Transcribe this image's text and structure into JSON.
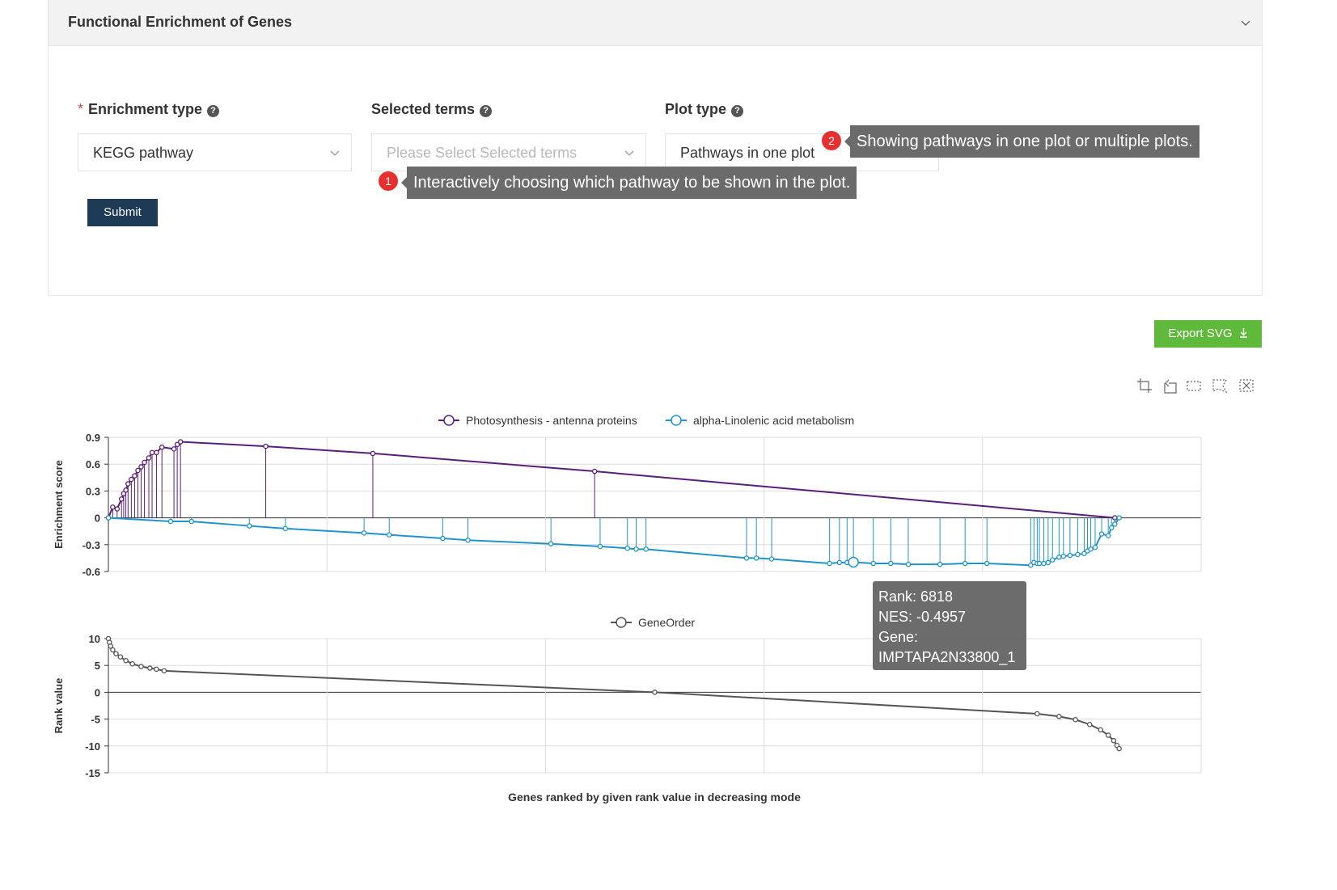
{
  "panel": {
    "title": "Functional Enrichment of Genes",
    "required_mark": "*",
    "help_glyph": "?",
    "fields": {
      "enrichment_type": {
        "label": "Enrichment type",
        "value": "KEGG pathway"
      },
      "selected_terms": {
        "label": "Selected terms",
        "placeholder": "Please Select Selected terms"
      },
      "plot_type": {
        "label": "Plot type",
        "value": "Pathways in one plot"
      }
    },
    "submit_label": "Submit"
  },
  "annotations": [
    {
      "number": "1",
      "text": "Interactively choosing which pathway to be shown in the plot."
    },
    {
      "number": "2",
      "text": "Showing pathways in one plot or multiple plots."
    }
  ],
  "export_label": "Export SVG",
  "toolbox_icons": [
    "zoom-icon",
    "zoom-reset-icon",
    "rect-select-icon",
    "lasso-select-icon",
    "clear-select-icon"
  ],
  "tooltip": {
    "lines": [
      "Rank: 6818",
      "NES: -0.4957",
      "Gene:",
      "IMPTAPA2N33800_1"
    ]
  },
  "colors": {
    "series1": "#5b1d7a",
    "series2": "#1f94cc",
    "gene_order": "#555555",
    "submit": "#1d3a57",
    "export": "#5fba3b",
    "badge": "#e5302f"
  },
  "chart_data": [
    {
      "type": "line",
      "ylabel": "Enrichment score",
      "ylim": [
        -0.6,
        0.9
      ],
      "yticks": [
        "0.9",
        "0.6",
        "0.3",
        "0",
        "-0.3",
        "-0.6"
      ],
      "xlim": [
        0,
        10000
      ],
      "grid": true,
      "legend_position": "top",
      "series": [
        {
          "name": "Photosynthesis - antenna proteins",
          "color": "#5b1d7a",
          "x": [
            0,
            40,
            80,
            120,
            140,
            160,
            180,
            210,
            240,
            270,
            300,
            330,
            370,
            400,
            440,
            490,
            600,
            630,
            660,
            1440,
            2420,
            4450,
            9210
          ],
          "y": [
            0,
            0.12,
            0.1,
            0.21,
            0.27,
            0.31,
            0.38,
            0.43,
            0.47,
            0.53,
            0.57,
            0.62,
            0.67,
            0.73,
            0.73,
            0.79,
            0.77,
            0.82,
            0.85,
            0.8,
            0.72,
            0.52,
            0.0
          ]
        },
        {
          "name": "alpha-Linolenic acid metabolism",
          "color": "#1f94cc",
          "x": [
            0,
            570,
            760,
            1290,
            1620,
            2340,
            2570,
            3060,
            3290,
            4050,
            4500,
            4750,
            4830,
            4920,
            5840,
            5930,
            6070,
            6600,
            6690,
            6760,
            6818,
            7000,
            7160,
            7320,
            7610,
            7840,
            8040,
            8440,
            8470,
            8500,
            8520,
            8560,
            8600,
            8640,
            8700,
            8740,
            8800,
            8870,
            8930,
            8960,
            8990,
            9030,
            9090,
            9150,
            9180,
            9210,
            9250
          ],
          "y": [
            0,
            -0.04,
            -0.04,
            -0.09,
            -0.12,
            -0.17,
            -0.19,
            -0.23,
            -0.25,
            -0.29,
            -0.32,
            -0.34,
            -0.35,
            -0.35,
            -0.45,
            -0.45,
            -0.46,
            -0.51,
            -0.5,
            -0.5,
            -0.4957,
            -0.51,
            -0.51,
            -0.52,
            -0.52,
            -0.51,
            -0.51,
            -0.53,
            -0.5,
            -0.51,
            -0.51,
            -0.51,
            -0.5,
            -0.47,
            -0.44,
            -0.43,
            -0.42,
            -0.41,
            -0.4,
            -0.37,
            -0.35,
            -0.33,
            -0.18,
            -0.2,
            -0.11,
            -0.07,
            0.0
          ]
        }
      ]
    },
    {
      "type": "line",
      "legend": [
        "GeneOrder"
      ],
      "ylabel": "Rank value",
      "xlabel": "Genes ranked by given rank value in decreasing mode",
      "ylim": [
        -15,
        10
      ],
      "yticks": [
        "10",
        "5",
        "0",
        "-5",
        "-10",
        "-15"
      ],
      "xlim": [
        0,
        10000
      ],
      "grid": true,
      "series": [
        {
          "name": "GeneOrder",
          "color": "#555555",
          "x": [
            0,
            10,
            20,
            40,
            70,
            110,
            160,
            220,
            300,
            380,
            440,
            510,
            5000,
            8500,
            8700,
            8850,
            8980,
            9080,
            9150,
            9200,
            9230,
            9250
          ],
          "y": [
            10,
            9.3,
            8.6,
            7.9,
            7.2,
            6.6,
            5.9,
            5.3,
            4.8,
            4.5,
            4.3,
            4.0,
            0,
            -4.0,
            -4.5,
            -5.1,
            -6.0,
            -7.0,
            -8.0,
            -9.0,
            -9.9,
            -10.5
          ]
        }
      ]
    }
  ]
}
